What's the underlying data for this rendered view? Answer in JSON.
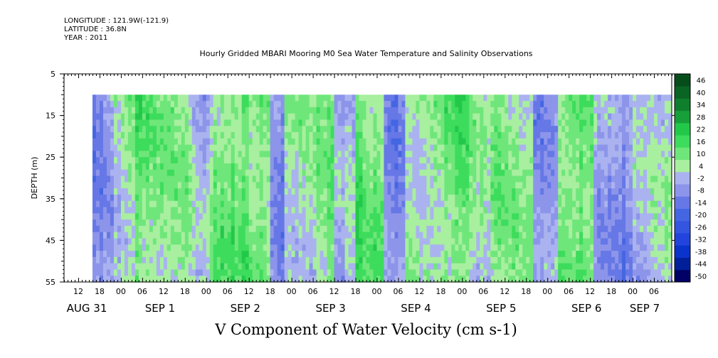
{
  "header": {
    "longitude": "LONGITUDE : 121.9W(-121.9)",
    "latitude": "LATITUDE : 36.8N",
    "year": "YEAR : 2011"
  },
  "chart_data": {
    "type": "heatmap",
    "title": "Hourly Gridded MBARI Mooring M0 Sea Water Temperature and Salinity Observations",
    "bottom_title": "V Component of Water Velocity (cm s-1)",
    "ylabel": "DEPTH (m)",
    "ylim": [
      5,
      55
    ],
    "y_inverted": true,
    "y_ticks": [
      5,
      15,
      25,
      35,
      45,
      55
    ],
    "data_depth_range": [
      10,
      55
    ],
    "x_range_hours": [
      "2011-08-31 08:00",
      "2011-09-07 11:00"
    ],
    "data_start": "2011-08-31 16:00",
    "hour_tick_labels": [
      "12",
      "18",
      "00",
      "06",
      "12",
      "18",
      "00",
      "06",
      "12",
      "18",
      "00",
      "06",
      "12",
      "18",
      "00",
      "06",
      "12",
      "18",
      "00",
      "06",
      "12",
      "18",
      "00",
      "06",
      "12",
      "18",
      "00",
      "06"
    ],
    "day_labels": [
      "AUG 31",
      "SEP  1",
      "SEP  2",
      "SEP  3",
      "SEP  4",
      "SEP  5",
      "SEP  6",
      "SEP  7"
    ],
    "colorbar": {
      "levels": [
        -50,
        -44,
        -38,
        -32,
        -26,
        -20,
        -14,
        -8,
        -2,
        4,
        10,
        16,
        22,
        28,
        34,
        40,
        46
      ],
      "labels": [
        "46",
        "40",
        "34",
        "28",
        "22",
        "16",
        "10",
        "4",
        "-2",
        "-8",
        "-14",
        "-20",
        "-26",
        "-32",
        "-38",
        "-44",
        "-50"
      ]
    },
    "pattern_bands": [
      {
        "start": "08-31 16:00",
        "end": "08-31 22:00",
        "dominant": "negative"
      },
      {
        "start": "08-31 22:00",
        "end": "09-01 04:00",
        "dominant": "mixed"
      },
      {
        "start": "09-01 04:00",
        "end": "09-01 20:00",
        "dominant": "positive"
      },
      {
        "start": "09-01 20:00",
        "end": "09-02 01:00",
        "dominant": "mixed"
      },
      {
        "start": "09-02 01:00",
        "end": "09-02 18:00",
        "dominant": "positive"
      },
      {
        "start": "09-02 18:00",
        "end": "09-02 22:00",
        "dominant": "negative"
      },
      {
        "start": "09-02 22:00",
        "end": "09-03 12:00",
        "dominant": "positive"
      },
      {
        "start": "09-03 12:00",
        "end": "09-03 18:00",
        "dominant": "negative"
      },
      {
        "start": "09-03 18:00",
        "end": "09-04 02:00",
        "dominant": "positive"
      },
      {
        "start": "09-04 02:00",
        "end": "09-04 08:00",
        "dominant": "negative"
      },
      {
        "start": "09-04 08:00",
        "end": "09-05 02:00",
        "dominant": "positive"
      },
      {
        "start": "09-05 02:00",
        "end": "09-05 08:00",
        "dominant": "mixed"
      },
      {
        "start": "09-05 08:00",
        "end": "09-05 20:00",
        "dominant": "positive"
      },
      {
        "start": "09-05 20:00",
        "end": "09-06 03:00",
        "dominant": "negative"
      },
      {
        "start": "09-06 03:00",
        "end": "09-06 13:00",
        "dominant": "positive"
      },
      {
        "start": "09-06 13:00",
        "end": "09-07 00:00",
        "dominant": "negative"
      },
      {
        "start": "09-07 00:00",
        "end": "09-07 10:00",
        "dominant": "mixed"
      }
    ]
  }
}
